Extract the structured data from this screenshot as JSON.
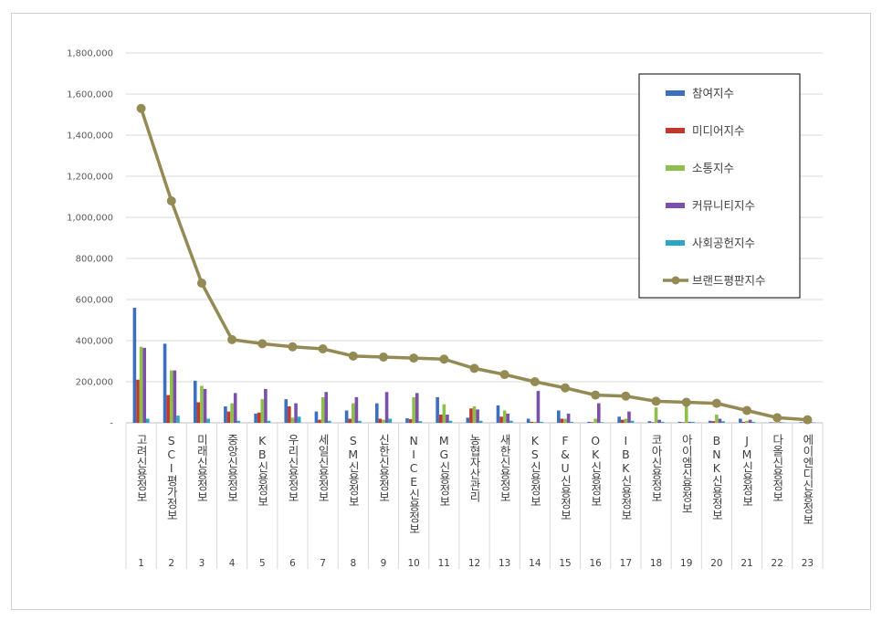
{
  "chart_data": {
    "type": "bar",
    "categories": [
      "고려신용정보",
      "SCI평가정보",
      "미래신용정보",
      "중앙신용정보",
      "KB신용정보",
      "우리신용정보",
      "세일신용정보",
      "SM신용정보",
      "신한신용정보",
      "NICE신용정보",
      "MG신용정보",
      "농협자산관리",
      "새한신용정보",
      "KS신용정보",
      "F&U신용정보",
      "OK신용정보",
      "IBK신용정보",
      "코아신용정보",
      "아이엠신용정보",
      "BNK신용정보",
      "JM신용정보",
      "다올신용정보",
      "에이엔디신용정보"
    ],
    "ranks": [
      "1",
      "2",
      "3",
      "4",
      "5",
      "6",
      "7",
      "8",
      "9",
      "10",
      "11",
      "12",
      "13",
      "14",
      "15",
      "16",
      "17",
      "18",
      "19",
      "20",
      "21",
      "22",
      "23"
    ],
    "series": [
      {
        "name": "참여지수",
        "color": "#3d6fc0",
        "values": [
          560000,
          385000,
          205000,
          80000,
          45000,
          115000,
          55000,
          60000,
          95000,
          22000,
          125000,
          25000,
          85000,
          20000,
          60000,
          5000,
          30000,
          8000,
          5000,
          10000,
          20000,
          3000,
          3000
        ]
      },
      {
        "name": "미디어지수",
        "color": "#c0392b",
        "values": [
          210000,
          135000,
          100000,
          55000,
          50000,
          80000,
          15000,
          20000,
          20000,
          18000,
          40000,
          70000,
          30000,
          5000,
          20000,
          3000,
          15000,
          3000,
          3000,
          8000,
          5000,
          2000,
          2000
        ]
      },
      {
        "name": "소통지수",
        "color": "#8dbf4a",
        "values": [
          370000,
          255000,
          180000,
          95000,
          115000,
          25000,
          125000,
          95000,
          15000,
          125000,
          90000,
          80000,
          60000,
          5000,
          20000,
          20000,
          20000,
          75000,
          90000,
          40000,
          10000,
          3000,
          3000
        ]
      },
      {
        "name": "커뮤니티지수",
        "color": "#7a50a8",
        "values": [
          365000,
          255000,
          165000,
          145000,
          165000,
          95000,
          150000,
          125000,
          150000,
          145000,
          40000,
          65000,
          45000,
          155000,
          45000,
          95000,
          55000,
          15000,
          5000,
          20000,
          15000,
          3000,
          3000
        ]
      },
      {
        "name": "사회공헌지수",
        "color": "#2ba6c4",
        "values": [
          20000,
          35000,
          20000,
          10000,
          10000,
          30000,
          10000,
          10000,
          20000,
          8000,
          10000,
          10000,
          10000,
          5000,
          5000,
          3000,
          10000,
          5000,
          5000,
          8000,
          5000,
          2000,
          2000
        ]
      }
    ],
    "line": {
      "name": "브랜드평판지수",
      "color": "#948a54",
      "values": [
        1530000,
        1080000,
        680000,
        405000,
        385000,
        370000,
        360000,
        325000,
        320000,
        315000,
        310000,
        265000,
        235000,
        200000,
        170000,
        135000,
        130000,
        105000,
        100000,
        95000,
        60000,
        25000,
        15000
      ]
    },
    "yticks": [
      "1,800,000",
      "1,600,000",
      "1,400,000",
      "1,200,000",
      "1,000,000",
      "800,000",
      "600,000",
      "400,000",
      "200,000",
      "-"
    ],
    "ylim": [
      0,
      1800000
    ],
    "grid": true,
    "legend_position": "top-right"
  }
}
